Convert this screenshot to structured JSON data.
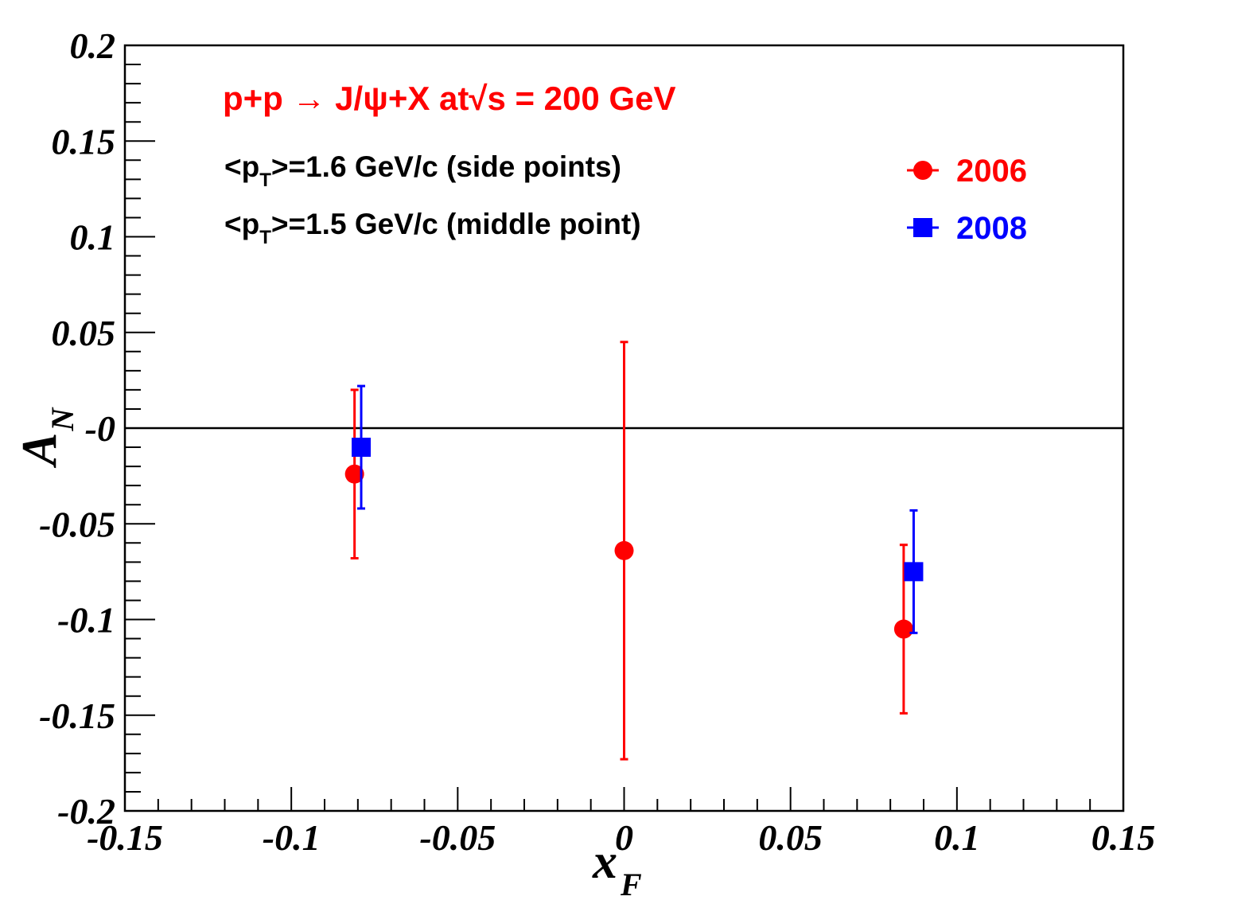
{
  "chart_data": {
    "type": "scatter",
    "xlabel": "x",
    "xlabel_sub": "F",
    "ylabel": "A",
    "ylabel_sub": "N",
    "xlim": [
      -0.15,
      0.15
    ],
    "ylim": [
      -0.2,
      0.2
    ],
    "x_ticks": [
      -0.15,
      -0.1,
      -0.05,
      0,
      0.05,
      0.1,
      0.15
    ],
    "x_tick_labels": [
      "-0.15",
      "-0.1",
      "-0.05",
      "0",
      "0.05",
      "0.1",
      "0.15"
    ],
    "y_ticks": [
      0.2,
      0.15,
      0.1,
      0.05,
      0,
      -0.05,
      -0.1,
      -0.15,
      -0.2
    ],
    "y_tick_labels": [
      "0.2",
      "0.15",
      "0.1",
      "0.05",
      "-0",
      "-0.05",
      "-0.1",
      "-0.15",
      "-0.2"
    ],
    "reference_line_y": 0,
    "grid": false,
    "legend_position": "top-right",
    "annotations": {
      "title": "p+p → J/ψ+X  at√s = 200 GeV",
      "line1_prefix": "<p",
      "line1_sub": "T",
      "line1_suffix": ">=1.6 GeV/c (side points)",
      "line2_prefix": "<p",
      "line2_sub": "T",
      "line2_suffix": ">=1.5 GeV/c (middle point)"
    },
    "series": [
      {
        "name": "2006",
        "color": "#ff0000",
        "marker": "circle",
        "points": [
          {
            "x": -0.081,
            "y": -0.024,
            "err_low": 0.044,
            "err_high": 0.044
          },
          {
            "x": 0.0,
            "y": -0.064,
            "err_low": 0.109,
            "err_high": 0.109
          },
          {
            "x": 0.084,
            "y": -0.105,
            "err_low": 0.044,
            "err_high": 0.044
          }
        ]
      },
      {
        "name": "2008",
        "color": "#0000ff",
        "marker": "square",
        "points": [
          {
            "x": -0.079,
            "y": -0.01,
            "err_low": 0.032,
            "err_high": 0.032
          },
          {
            "x": 0.087,
            "y": -0.075,
            "err_low": 0.032,
            "err_high": 0.032
          }
        ]
      }
    ]
  }
}
